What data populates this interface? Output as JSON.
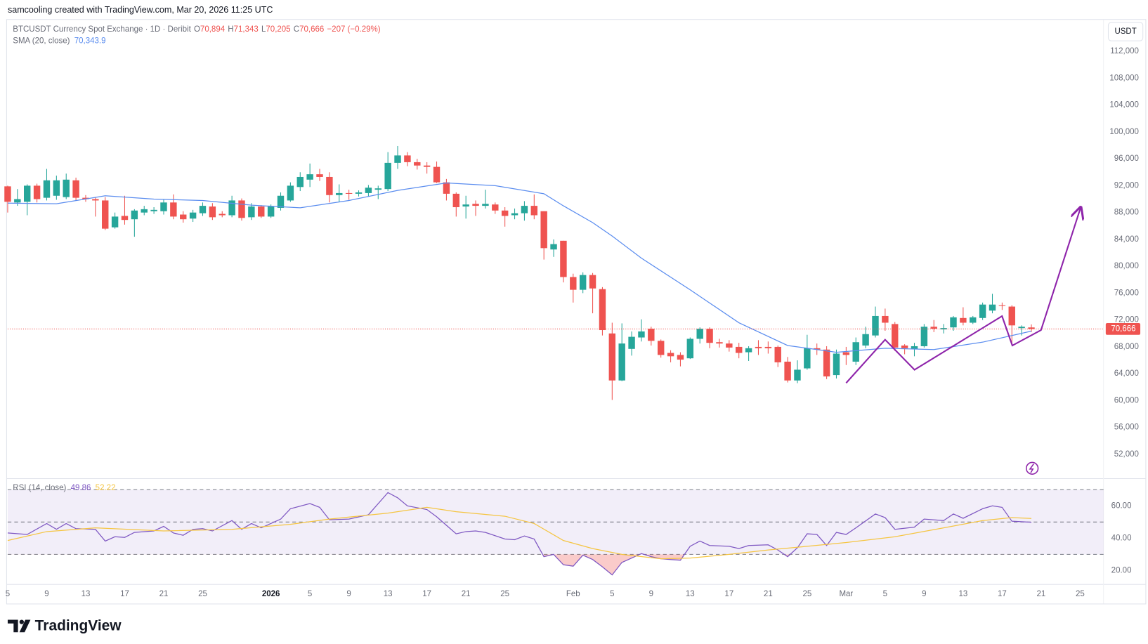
{
  "header": {
    "attribution": "samcooling created with TradingView.com, Mar 20, 2026 11:25 UTC"
  },
  "footer": {
    "brand": "TradingView"
  },
  "chart_data": [
    {
      "type": "candlestick",
      "title": "BTCUSDT Currency Spot Exchange · 1D · Deribit",
      "ohlc_keys": [
        "O",
        "H",
        "L",
        "C"
      ],
      "ohlc_labels": [
        "70,894",
        "71,343",
        "70,205",
        "70,666"
      ],
      "change_label": "−207 (−0.29%)",
      "currency": "USDT",
      "up_color": "#26a69a",
      "down_color": "#ef5350",
      "open": [
        91900,
        89500,
        89600,
        92000,
        90200,
        90500,
        90300,
        92800,
        90200,
        90000,
        89800,
        85800,
        87500,
        87000,
        88000,
        88200,
        88200,
        89500,
        87700,
        87100,
        87900,
        88900,
        87800,
        87600,
        89800,
        87300,
        88900,
        87400,
        88700,
        89800,
        91800,
        92900,
        93700,
        93300,
        90600,
        90900,
        90800,
        90900,
        91400,
        91500,
        95400,
        96500,
        95500,
        95000,
        94800,
        92500,
        90800,
        88900,
        89300,
        89000,
        89200,
        88300,
        87600,
        87900,
        89000,
        88200,
        82500,
        83800,
        78400,
        76500,
        78700,
        76600,
        70000,
        63000,
        67700,
        69400,
        70700,
        68900,
        67100,
        66800,
        66300,
        69200,
        70700,
        68700,
        68500,
        68000,
        67200,
        68000,
        68000,
        68000,
        65800,
        63000,
        64800,
        67800,
        67600,
        63800,
        67200,
        65800,
        68200,
        69700,
        72600,
        71400,
        68200,
        67700,
        68100,
        71000,
        70600,
        70900,
        72300,
        71600,
        72300,
        73400,
        74200,
        74000,
        70800,
        70894
      ],
      "high": [
        92000,
        91500,
        92200,
        92300,
        94500,
        93500,
        93800,
        93200,
        90600,
        90300,
        90300,
        88000,
        90500,
        88500,
        89000,
        88800,
        90000,
        90700,
        88200,
        88400,
        89500,
        89400,
        88200,
        90500,
        90100,
        89400,
        89100,
        89200,
        91000,
        92500,
        94000,
        95300,
        94500,
        94000,
        92200,
        91400,
        91300,
        92100,
        92000,
        97000,
        97900,
        97000,
        96000,
        95500,
        95600,
        93000,
        91000,
        90500,
        89800,
        91400,
        89500,
        88800,
        88600,
        89700,
        90700,
        88200,
        84000,
        83800,
        78900,
        79100,
        79000,
        76900,
        71600,
        71500,
        70300,
        72100,
        71000,
        69100,
        67500,
        67200,
        69400,
        70900,
        70900,
        69200,
        69000,
        68600,
        68100,
        69000,
        68800,
        68200,
        66500,
        66000,
        69800,
        68500,
        68100,
        67600,
        68000,
        69400,
        71000,
        74000,
        73700,
        71700,
        68400,
        68600,
        71400,
        72000,
        71400,
        72600,
        73900,
        72600,
        74600,
        75900,
        74600,
        74200,
        71200,
        71343
      ],
      "low": [
        88000,
        89000,
        87600,
        89500,
        89800,
        89900,
        90000,
        89800,
        89600,
        87400,
        85400,
        85600,
        86200,
        84400,
        87600,
        87800,
        87700,
        87000,
        86500,
        86600,
        87500,
        86900,
        87300,
        87300,
        86800,
        86900,
        87200,
        87200,
        88300,
        89600,
        91200,
        91800,
        92700,
        89500,
        89600,
        89900,
        90400,
        90400,
        90000,
        91200,
        94500,
        94900,
        94400,
        93800,
        92400,
        89800,
        87400,
        87100,
        87500,
        88600,
        87800,
        85900,
        87000,
        86800,
        87000,
        81000,
        81400,
        77600,
        74600,
        76000,
        73000,
        69700,
        60100,
        62900,
        66700,
        68800,
        68200,
        66400,
        65700,
        65100,
        66200,
        68500,
        67800,
        67900,
        67300,
        66300,
        65900,
        66800,
        67000,
        65000,
        62700,
        62600,
        64600,
        66800,
        63200,
        63300,
        65300,
        65300,
        67800,
        69400,
        70400,
        67400,
        66900,
        66600,
        67900,
        70200,
        70000,
        70400,
        71200,
        71400,
        72000,
        73000,
        73500,
        68300,
        69700,
        70205
      ],
      "close": [
        89600,
        90000,
        92000,
        90000,
        92800,
        92800,
        92900,
        90200,
        90000,
        89800,
        85600,
        87400,
        86900,
        88300,
        88500,
        88400,
        89500,
        87400,
        87000,
        88000,
        89000,
        87300,
        87600,
        89800,
        87200,
        88900,
        87400,
        88900,
        90500,
        92000,
        93300,
        93700,
        93300,
        90600,
        90900,
        90800,
        91000,
        91700,
        91600,
        95400,
        96500,
        95500,
        95000,
        94800,
        92500,
        90800,
        88800,
        89200,
        89000,
        89300,
        88300,
        87500,
        87900,
        89000,
        87600,
        82700,
        83300,
        78400,
        76500,
        78700,
        76700,
        70500,
        63000,
        68500,
        69500,
        70300,
        68900,
        66800,
        66600,
        66100,
        69200,
        70700,
        68600,
        68500,
        67900,
        67100,
        67800,
        67800,
        67800,
        65700,
        63000,
        64600,
        67800,
        67600,
        63600,
        67000,
        66800,
        68700,
        69900,
        72600,
        71600,
        67900,
        67800,
        68100,
        71000,
        70700,
        70800,
        72400,
        71600,
        72400,
        74300,
        74300,
        74100,
        71200,
        71000,
        70666
      ],
      "xlim": [
        0,
        112.4
      ],
      "ylim": [
        48500,
        116800
      ],
      "yticks": [
        {
          "value": 52000,
          "label": "52,000"
        },
        {
          "value": 56000,
          "label": "56,000"
        },
        {
          "value": 60000,
          "label": "60,000"
        },
        {
          "value": 64000,
          "label": "64,000"
        },
        {
          "value": 68000,
          "label": "68,000"
        },
        {
          "value": 72000,
          "label": "72,000"
        },
        {
          "value": 76000,
          "label": "76,000"
        },
        {
          "value": 80000,
          "label": "80,000"
        },
        {
          "value": 84000,
          "label": "84,000"
        },
        {
          "value": 88000,
          "label": "88,000"
        },
        {
          "value": 92000,
          "label": "92,000"
        },
        {
          "value": 96000,
          "label": "96,000"
        },
        {
          "value": 100000,
          "label": "100,000"
        },
        {
          "value": 104000,
          "label": "104,000"
        },
        {
          "value": 108000,
          "label": "108,000"
        },
        {
          "value": 112000,
          "label": "112,000"
        }
      ],
      "sma": {
        "name": "SMA (20, close)",
        "value_label": "70,343.9",
        "color": "#5b8def",
        "x": [
          0,
          5,
          10,
          15,
          20,
          25,
          30,
          35,
          40,
          45,
          50,
          55,
          57,
          60,
          62,
          65,
          70,
          75,
          80,
          85,
          90,
          95,
          100,
          105
        ],
        "values": [
          89400,
          89300,
          90500,
          90000,
          89800,
          89100,
          88700,
          89800,
          91300,
          92400,
          92000,
          90800,
          89000,
          86500,
          84500,
          81200,
          76500,
          71600,
          68200,
          67200,
          67800,
          67600,
          68700,
          70343.9
        ]
      }
    },
    {
      "type": "line",
      "xlim": [
        0,
        112.4
      ],
      "ylim": [
        11.4,
        76.4
      ],
      "bands": [
        70,
        50,
        30
      ],
      "band_color": "#7e57c2",
      "oversold_color": "#ef5350",
      "yticks": [
        {
          "value": 20,
          "label": "20.00"
        },
        {
          "value": 40,
          "label": "40.00"
        },
        {
          "value": 60,
          "label": "60.00"
        }
      ],
      "xticks": [
        {
          "value": 0,
          "label": "5"
        },
        {
          "value": 4,
          "label": "9"
        },
        {
          "value": 8,
          "label": "13"
        },
        {
          "value": 12,
          "label": "17"
        },
        {
          "value": 16,
          "label": "21"
        },
        {
          "value": 20,
          "label": "25"
        },
        {
          "value": 27,
          "label": "2026"
        },
        {
          "value": 31,
          "label": "5"
        },
        {
          "value": 35,
          "label": "9"
        },
        {
          "value": 39,
          "label": "13"
        },
        {
          "value": 43,
          "label": "17"
        },
        {
          "value": 47,
          "label": "21"
        },
        {
          "value": 51,
          "label": "25"
        },
        {
          "value": 58,
          "label": "Feb"
        },
        {
          "value": 62,
          "label": "5"
        },
        {
          "value": 66,
          "label": "9"
        },
        {
          "value": 70,
          "label": "13"
        },
        {
          "value": 74,
          "label": "17"
        },
        {
          "value": 78,
          "label": "21"
        },
        {
          "value": 82,
          "label": "25"
        },
        {
          "value": 86,
          "label": "Mar"
        },
        {
          "value": 90,
          "label": "5"
        },
        {
          "value": 94,
          "label": "9"
        },
        {
          "value": 98,
          "label": "13"
        },
        {
          "value": 102,
          "label": "17"
        },
        {
          "value": 106,
          "label": "21"
        },
        {
          "value": 110,
          "label": "25"
        }
      ],
      "series": [
        {
          "name": "RSI (14, close)",
          "value_label": "49.86",
          "color": "#7e57c2",
          "x": [
            0,
            2,
            4,
            5,
            6,
            7,
            9,
            10,
            11,
            12,
            13,
            15,
            16,
            17,
            18,
            19,
            20,
            21,
            23,
            24,
            25,
            26,
            28,
            29,
            31,
            32,
            33,
            35,
            37,
            39,
            40,
            41,
            43,
            44,
            46,
            47,
            48,
            49,
            51,
            52,
            53,
            54,
            55,
            56,
            57,
            58,
            59,
            60,
            61,
            62,
            63,
            65,
            66,
            67,
            68,
            69,
            70,
            71,
            72,
            74,
            75,
            76,
            78,
            79,
            80,
            81,
            82,
            83,
            84,
            85,
            86,
            87,
            89,
            90,
            91,
            93,
            94,
            96,
            97,
            98,
            100,
            101,
            102,
            103,
            105
          ],
          "values": [
            43.2,
            42.3,
            49.1,
            45.5,
            49.1,
            45.9,
            45.5,
            38.2,
            40.9,
            40.5,
            43.6,
            44.5,
            47.3,
            43.2,
            41.8,
            45.5,
            45.9,
            44.5,
            50.9,
            45.5,
            49.1,
            46.4,
            51.8,
            58.2,
            61.4,
            59.1,
            51.4,
            51.8,
            54.5,
            68.2,
            65.0,
            60.0,
            57.7,
            53.2,
            42.7,
            44.1,
            44.5,
            43.6,
            39.5,
            39.1,
            41.4,
            39.5,
            28.6,
            30.0,
            23.6,
            22.7,
            29.5,
            26.8,
            22.3,
            17.3,
            25.0,
            30.5,
            28.6,
            27.3,
            26.8,
            26.4,
            35.0,
            38.2,
            35.5,
            35.0,
            33.6,
            35.5,
            35.9,
            32.7,
            28.6,
            34.1,
            42.7,
            42.3,
            35.5,
            43.6,
            42.3,
            46.4,
            55.0,
            52.7,
            45.5,
            46.8,
            51.8,
            50.9,
            55.0,
            52.3,
            58.2,
            60.0,
            59.1,
            50.5,
            49.86
          ]
        },
        {
          "value_label": "52.22",
          "color": "#f5c542",
          "x": [
            0,
            4,
            9,
            16,
            23,
            29,
            33,
            39,
            43,
            46,
            51,
            54,
            57,
            60,
            63,
            67,
            70,
            74,
            78,
            82,
            86,
            91,
            96,
            100,
            103,
            105
          ],
          "values": [
            38.6,
            44.1,
            46.4,
            44.5,
            45.5,
            48.6,
            51.8,
            55.5,
            59.1,
            56.4,
            53.6,
            49.1,
            38.6,
            33.6,
            30.0,
            27.3,
            27.7,
            30.0,
            32.7,
            35.0,
            37.3,
            40.9,
            46.4,
            50.9,
            52.7,
            52.22
          ]
        }
      ]
    }
  ]
}
